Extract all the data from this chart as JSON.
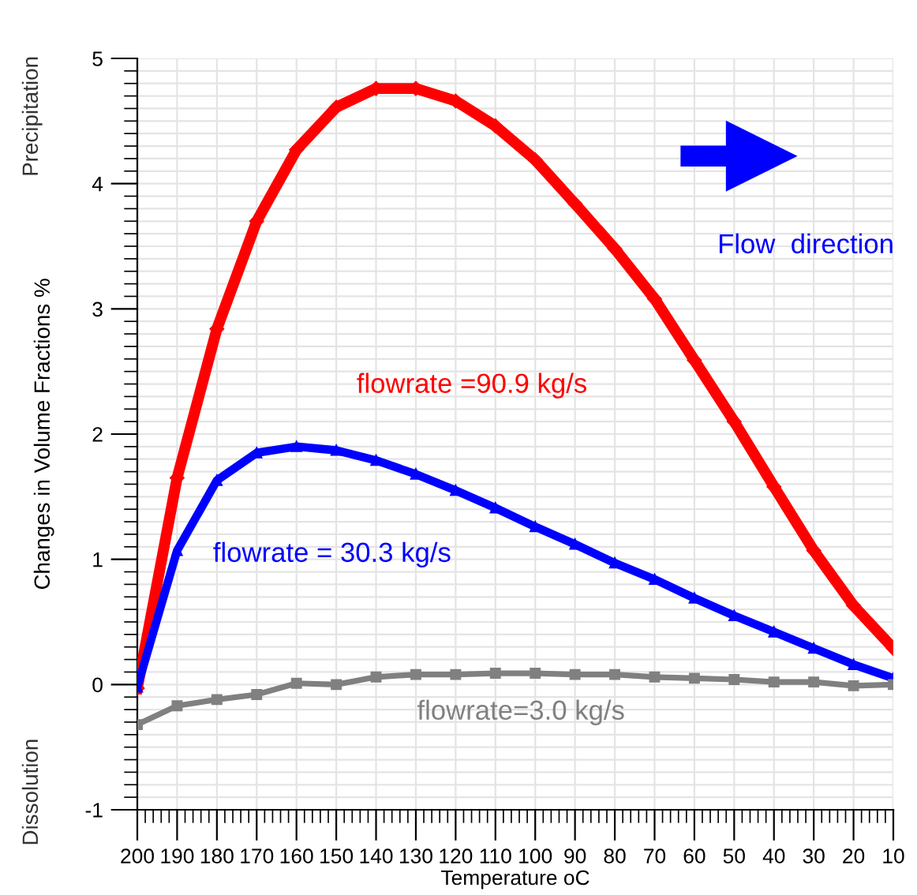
{
  "chart_data": {
    "type": "line",
    "xlabel": "Temperature oC",
    "ylabel": "Changes in Volume Fractions %",
    "x": [
      200,
      190,
      180,
      170,
      160,
      150,
      140,
      130,
      120,
      110,
      100,
      90,
      80,
      70,
      60,
      50,
      40,
      30,
      20,
      10
    ],
    "xlim": [
      200,
      10
    ],
    "xticks": [
      200,
      190,
      180,
      170,
      160,
      150,
      140,
      130,
      120,
      110,
      100,
      90,
      80,
      70,
      60,
      50,
      40,
      30,
      20,
      10
    ],
    "ylim": [
      -1,
      5
    ],
    "yticks": [
      -1,
      0,
      1,
      2,
      3,
      4,
      5
    ],
    "grid": true,
    "legend": false,
    "line_style": "solid",
    "series": [
      {
        "name": "flowrate =90.9 kg/s",
        "color": "#ff0000",
        "marker": "diamond",
        "values": [
          -0.03,
          1.65,
          2.84,
          3.7,
          4.27,
          4.61,
          4.76,
          4.76,
          4.66,
          4.46,
          4.19,
          3.84,
          3.48,
          3.08,
          2.59,
          2.1,
          1.58,
          1.07,
          0.63,
          0.29
        ]
      },
      {
        "name": "flowrate = 30.3 kg/s",
        "color": "#0000ff",
        "marker": "triangle",
        "values": [
          -0.02,
          1.07,
          1.63,
          1.85,
          1.9,
          1.87,
          1.79,
          1.68,
          1.55,
          1.41,
          1.26,
          1.12,
          0.97,
          0.84,
          0.69,
          0.55,
          0.42,
          0.29,
          0.16,
          0.05
        ]
      },
      {
        "name": "flowrate=3.0 kg/s",
        "color": "#808080",
        "marker": "square",
        "values": [
          -0.32,
          -0.17,
          -0.12,
          -0.08,
          0.01,
          0.0,
          0.06,
          0.08,
          0.08,
          0.09,
          0.09,
          0.08,
          0.08,
          0.06,
          0.05,
          0.04,
          0.02,
          0.02,
          -0.01,
          0.0
        ]
      }
    ],
    "annotations": [
      "Precipitation",
      "Dissolution",
      "Flow  direction"
    ]
  }
}
